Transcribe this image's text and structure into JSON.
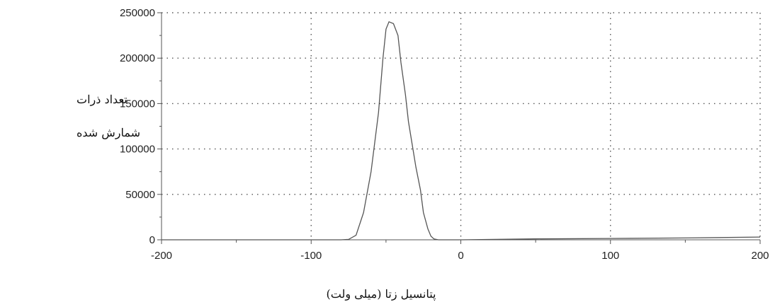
{
  "chart_data": {
    "type": "line",
    "xlabel": "پتانسیل زتا (میلی ولت)",
    "ylabel_lines": [
      "تعداد ذرات",
      "شمارش شده"
    ],
    "xlim": [
      -200,
      200
    ],
    "ylim": [
      0,
      250000
    ],
    "x_ticks": [
      -200,
      -100,
      0,
      100,
      200
    ],
    "y_ticks": [
      0,
      50000,
      100000,
      150000,
      200000,
      250000
    ],
    "grid": true,
    "series": [
      {
        "x": [
          -200,
          -150,
          -100,
          -80,
          -75,
          -70,
          -65,
          -60,
          -55,
          -52,
          -50,
          -48,
          -45,
          -42,
          -40,
          -37,
          -35,
          -32,
          -30,
          -27,
          -25,
          -22,
          -20,
          -18,
          -15,
          -12,
          -10,
          0,
          50,
          100,
          150,
          200
        ],
        "values": [
          0,
          0,
          0,
          0,
          500,
          5000,
          30000,
          75000,
          140000,
          200000,
          232000,
          240000,
          238000,
          225000,
          195000,
          160000,
          130000,
          100000,
          80000,
          55000,
          30000,
          12000,
          4000,
          1000,
          0,
          0,
          0,
          0,
          1000,
          1500,
          2000,
          3000
        ]
      }
    ]
  }
}
